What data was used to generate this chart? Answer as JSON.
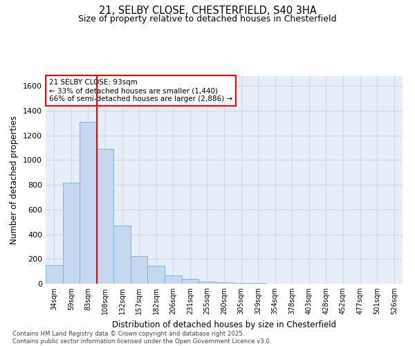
{
  "title_line1": "21, SELBY CLOSE, CHESTERFIELD, S40 3HA",
  "title_line2": "Size of property relative to detached houses in Chesterfield",
  "xlabel": "Distribution of detached houses by size in Chesterfield",
  "ylabel": "Number of detached properties",
  "bar_labels": [
    "34sqm",
    "59sqm",
    "83sqm",
    "108sqm",
    "132sqm",
    "157sqm",
    "182sqm",
    "206sqm",
    "231sqm",
    "255sqm",
    "280sqm",
    "305sqm",
    "329sqm",
    "354sqm",
    "378sqm",
    "403sqm",
    "428sqm",
    "452sqm",
    "477sqm",
    "501sqm",
    "526sqm"
  ],
  "bar_values": [
    150,
    820,
    1310,
    1090,
    470,
    225,
    145,
    65,
    40,
    18,
    10,
    5,
    3,
    2,
    1,
    1,
    0,
    0,
    0,
    0,
    0
  ],
  "bar_color": "#c5d8f0",
  "bar_edge_color": "#7ab8d8",
  "grid_color": "#ccd8ee",
  "background_color": "#e8eef8",
  "vline_color": "red",
  "annotation_title": "21 SELBY CLOSE: 93sqm",
  "annotation_line1": "← 33% of detached houses are smaller (1,440)",
  "annotation_line2": "66% of semi-detached houses are larger (2,886) →",
  "ylim": [
    0,
    1680
  ],
  "yticks": [
    0,
    200,
    400,
    600,
    800,
    1000,
    1200,
    1400,
    1600
  ],
  "footer_line1": "Contains HM Land Registry data © Crown copyright and database right 2025.",
  "footer_line2": "Contains public sector information licensed under the Open Government Licence v3.0."
}
